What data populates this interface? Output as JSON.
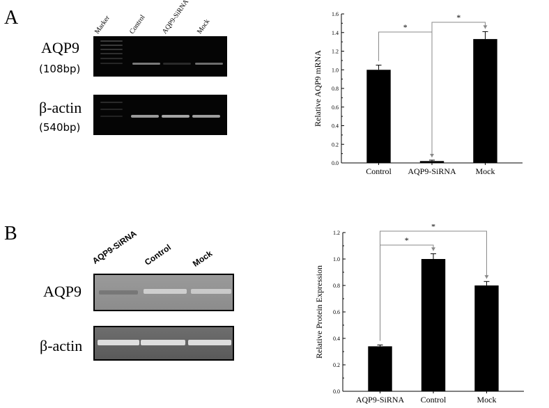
{
  "panel_a": {
    "letter": "A",
    "lanes": [
      "Marker",
      "Control",
      "AQP9-SiRNA",
      "Mock"
    ],
    "gel_rows": [
      {
        "name": "AQP9",
        "size": "(108bp)"
      },
      {
        "name": "β-actin",
        "size": "(540bp)"
      }
    ]
  },
  "panel_b": {
    "letter": "B",
    "lanes": [
      "AQP9-SiRNA",
      "Control",
      "Mock"
    ],
    "blot_rows": [
      {
        "name": "AQP9"
      },
      {
        "name": "β-actin"
      }
    ]
  },
  "chart_data": [
    {
      "type": "bar",
      "categories": [
        "Control",
        "AQP9-SiRNA",
        "Mock"
      ],
      "values": [
        1.0,
        0.02,
        1.33
      ],
      "errors": [
        0.05,
        0.01,
        0.08
      ],
      "ylabel": "Relative AQP9 mRNA",
      "ylim": [
        0,
        1.6
      ],
      "yticks": [
        "0.0",
        "0.2",
        "0.4",
        "0.6",
        "0.8",
        "1.0",
        "1.2",
        "1.4",
        "1.6"
      ],
      "bar_color": "#000000",
      "significance": [
        {
          "from": 0,
          "to": 1,
          "label": "*"
        },
        {
          "from": 1,
          "to": 2,
          "label": "*"
        }
      ]
    },
    {
      "type": "bar",
      "categories": [
        "AQP9-SiRNA",
        "Control",
        "Mock"
      ],
      "values": [
        0.34,
        1.0,
        0.8
      ],
      "errors": [
        0.01,
        0.04,
        0.03
      ],
      "ylabel": "Relative Protein Expression",
      "ylim": [
        0,
        1.2
      ],
      "yticks": [
        "0.0",
        "0.2",
        "0.4",
        "0.6",
        "0.8",
        "1.0",
        "1.2"
      ],
      "bar_color": "#000000",
      "significance": [
        {
          "from": 0,
          "to": 1,
          "label": "*"
        },
        {
          "from": 0,
          "to": 2,
          "label": "*"
        }
      ]
    }
  ]
}
